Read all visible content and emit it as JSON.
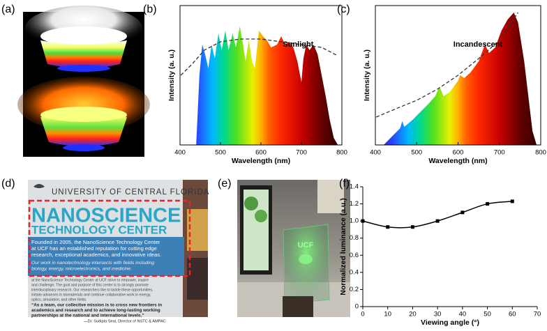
{
  "panel_labels": [
    "(a)",
    "(b)",
    "(c)",
    "(d)",
    "(e)",
    "(f)"
  ],
  "chart_data": [
    {
      "type": "area",
      "xlim": [
        400,
        800
      ],
      "xticks": [
        400,
        500,
        600,
        700,
        800
      ],
      "ylim": [
        0,
        1
      ],
      "xlabel": "Wavelength (nm)",
      "ylabel": "Intensity (a. u.)",
      "frame": true,
      "series": [
        {
          "fill": "spectrum",
          "x": [
            440,
            448,
            455,
            462,
            470,
            478,
            486,
            495,
            503,
            512,
            520,
            530,
            538,
            548,
            556,
            562,
            570,
            578,
            585,
            595,
            605,
            615,
            625,
            640,
            650,
            660,
            670,
            680,
            690,
            700,
            705,
            712,
            720,
            730,
            740,
            750,
            760,
            770,
            780,
            790
          ],
          "values": [
            0,
            0.5,
            0.72,
            0.65,
            0.55,
            0.72,
            0.62,
            0.8,
            0.68,
            0.82,
            0.68,
            0.8,
            0.7,
            0.85,
            0.72,
            0.6,
            0.75,
            0.6,
            0.55,
            0.82,
            0.78,
            0.75,
            0.7,
            0.72,
            0.78,
            0.72,
            0.74,
            0.7,
            0.6,
            0.45,
            0.62,
            0.72,
            0.68,
            0.72,
            0.65,
            0.5,
            0.35,
            0.18,
            0.05,
            0
          ]
        },
        {
          "name": "Sunlight",
          "color": "#333333",
          "dash": true,
          "x": [
            402,
            430,
            460,
            500,
            550,
            600,
            650,
            700,
            750,
            790
          ],
          "values": [
            0.5,
            0.58,
            0.68,
            0.74,
            0.76,
            0.76,
            0.74,
            0.72,
            0.7,
            0.64
          ]
        }
      ]
    },
    {
      "type": "area",
      "xlim": [
        400,
        800
      ],
      "xticks": [
        400,
        500,
        600,
        700,
        800
      ],
      "ylim": [
        0,
        1
      ],
      "xlabel": "Wavelength (nm)",
      "ylabel": "Intensity (a. u.)",
      "frame": true,
      "series": [
        {
          "fill": "spectrum",
          "x": [
            420,
            440,
            460,
            465,
            470,
            490,
            510,
            530,
            545,
            555,
            565,
            580,
            600,
            605,
            615,
            630,
            650,
            665,
            675,
            690,
            705,
            720,
            735,
            745,
            760,
            770,
            780,
            790
          ],
          "values": [
            0,
            0.06,
            0.12,
            0.17,
            0.13,
            0.18,
            0.24,
            0.3,
            0.35,
            0.42,
            0.35,
            0.38,
            0.46,
            0.5,
            0.48,
            0.52,
            0.6,
            0.72,
            0.66,
            0.7,
            0.82,
            0.9,
            0.95,
            0.88,
            0.6,
            0.35,
            0.1,
            0
          ]
        },
        {
          "name": "Incandescent",
          "color": "#333333",
          "dash": true,
          "x": [
            402,
            450,
            500,
            550,
            600,
            650,
            700,
            745
          ],
          "values": [
            0.2,
            0.26,
            0.32,
            0.4,
            0.5,
            0.62,
            0.75,
            0.95
          ]
        }
      ]
    },
    {
      "type": "line",
      "xlim": [
        0,
        70
      ],
      "xticks": [
        0,
        10,
        20,
        30,
        40,
        50,
        60,
        70
      ],
      "ylim": [
        0,
        1.4
      ],
      "yticks": [
        0,
        0.2,
        0.4,
        0.6,
        0.8,
        {
          "value": 1,
          "label": "1.0"
        },
        1.2,
        1.4
      ],
      "xlabel": "Viewing angle (°)",
      "ylabel": "Normalized luminance (a.u.)",
      "frame": false,
      "series": [
        {
          "color": "#000000",
          "marker": "square",
          "x": [
            0,
            10,
            20,
            30,
            40,
            50,
            60
          ],
          "values": [
            1.0,
            0.93,
            0.93,
            1.0,
            1.1,
            1.2,
            1.23
          ]
        }
      ]
    }
  ],
  "poster": {
    "university": "UNIVERSITY OF CENTRAL FLORIDA",
    "title": "NANOSCIENCE",
    "subtitle": "TECHNOLOGY CENTER",
    "intro": [
      "Founded in 2005, the NanoScience Technology Center",
      "at UCF has an established reputation for cutting edge",
      "research, exceptional academics, and innovative ideas."
    ],
    "focus": [
      "Our work in nanotechnology intersects with fields including",
      "biology, energy, microelectronics, and medicine."
    ],
    "body": [
      "at the NanoScience Technology Center at UCF strive to empower, inspire",
      "and challenge. The goal and purpose of this center is to strongly promote",
      "interdisciplinary research. Our researchers like to tackle these opportunities,",
      "initiate advances in biomaterials and continue collaborative work in energy,",
      "optics, simulation, and other fields."
    ],
    "quote": [
      "“As a team, our collective mission is to cross new frontiers in",
      "academics and research and to achieve long-lasting working",
      "partnerships at the national and international levels.”"
    ],
    "attribution": "—Dr. Sudipta Seal, Director of NSTC & AMPAC"
  },
  "photo": {
    "sign": "UCF"
  }
}
